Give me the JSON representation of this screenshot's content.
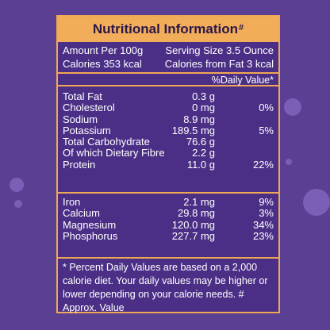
{
  "title": "Nutritional Information",
  "title_mark": "#",
  "serving": {
    "amount": "Amount Per 100g",
    "size": "Serving Size 3.5 Ounce",
    "calories": "Calories 353 kcal",
    "fat_calories": "Calories from Fat 3 kcal",
    "dv_header": "%Daily Value*"
  },
  "macros": [
    {
      "name": "Total Fat",
      "amount": "0.3 g",
      "dv": ""
    },
    {
      "name": "Cholesterol",
      "amount": "0 mg",
      "dv": "0%"
    },
    {
      "name": "Sodium",
      "amount": "8.9 mg",
      "dv": ""
    },
    {
      "name": "Potassium",
      "amount": "189.5 mg",
      "dv": "5%"
    },
    {
      "name": "Total Carbohydrate",
      "amount": "76.6 g",
      "dv": ""
    },
    {
      "name": "Of which Dietary Fibre",
      "amount": "2.2 g",
      "dv": ""
    },
    {
      "name": "Protein",
      "amount": "11.0 g",
      "dv": "22%"
    }
  ],
  "minerals": [
    {
      "name": "Iron",
      "amount": "2.1 mg",
      "dv": "9%"
    },
    {
      "name": "Calcium",
      "amount": "29.8 mg",
      "dv": "3%"
    },
    {
      "name": "Magnesium",
      "amount": "120.0 mg",
      "dv": "34%"
    },
    {
      "name": "Phosphorus",
      "amount": "227.7 mg",
      "dv": "23%"
    }
  ],
  "footnote": "* Percent Daily Values are based on a 2,000 calorie diet. Your daily values may be higher or lower depending on your calorie needs. # Approx. Value",
  "colors": {
    "background": "#5b3f93",
    "accent": "#f2ad5a",
    "text": "#ffffff"
  }
}
